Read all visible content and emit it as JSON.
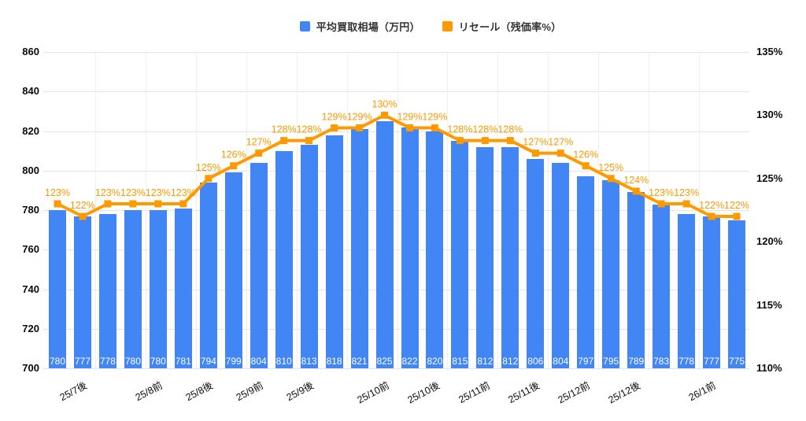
{
  "legend": {
    "items": [
      {
        "label": "平均買取相場（万円）",
        "color": "#4285F4"
      },
      {
        "label": "リセール（残価率%）",
        "color": "#FF9900"
      }
    ]
  },
  "chart_data": {
    "type": "bar",
    "combo": "bar+line",
    "series": [
      {
        "name": "平均買取相場（万円）",
        "type": "bar",
        "axis": "left",
        "color": "#4285F4",
        "values": [
          780,
          777,
          778,
          780,
          780,
          781,
          794,
          799,
          804,
          810,
          813,
          818,
          821,
          825,
          822,
          820,
          815,
          812,
          812,
          806,
          804,
          797,
          795,
          789,
          783,
          778,
          777,
          775
        ]
      },
      {
        "name": "リセール（残価率%）",
        "type": "line",
        "axis": "right",
        "color": "#FF9900",
        "suffix": "%",
        "values": [
          123,
          122,
          123,
          123,
          123,
          123,
          125,
          126,
          127,
          128,
          128,
          129,
          129,
          130,
          129,
          129,
          128,
          128,
          128,
          127,
          127,
          126,
          125,
          124,
          123,
          123,
          122,
          122
        ]
      }
    ],
    "x_axis": {
      "tick_labels": [
        "25/7後",
        "25/8前",
        "25/8後",
        "25/9前",
        "25/9後",
        "25/10前",
        "25/10後",
        "25/11前",
        "25/11後",
        "25/12前",
        "25/12後",
        "26/1前"
      ],
      "tick_bar_indices": [
        1,
        4,
        6,
        8,
        10,
        13,
        15,
        17,
        19,
        21,
        23,
        26
      ]
    },
    "left_axis": {
      "min": 700,
      "max": 860,
      "step": 20,
      "tick_labels": [
        "860",
        "840",
        "820",
        "800",
        "780",
        "760",
        "740",
        "720",
        "700"
      ]
    },
    "right_axis": {
      "min": 110,
      "max": 135,
      "step": 5,
      "tick_labels": [
        "135%",
        "130%",
        "125%",
        "120%",
        "115%",
        "110%"
      ]
    },
    "colors": {
      "bar": "#4285F4",
      "line": "#FF9900",
      "annotation_text": "#FB9900",
      "bar_value_text": "#FFFFFF",
      "grid": "#E4E4E4",
      "axis_text": "#0A0A0A",
      "background": "#FFFFFF"
    },
    "grid": true,
    "legend_position": "top"
  }
}
